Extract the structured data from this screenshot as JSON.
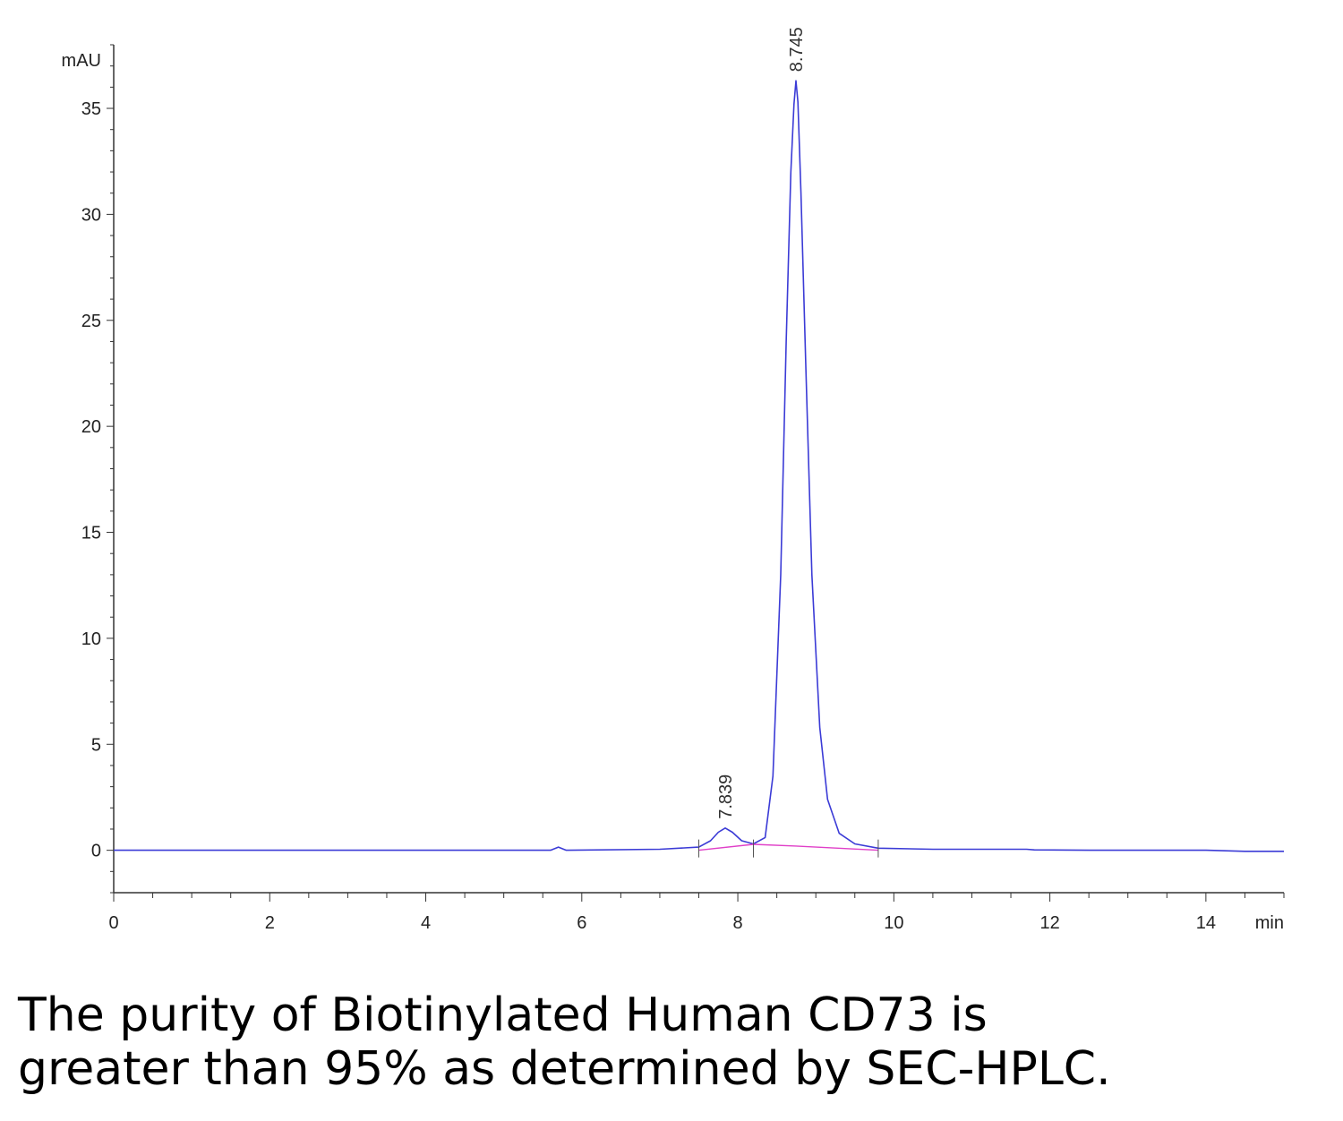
{
  "chart_data": {
    "type": "line",
    "title": "",
    "xlabel": "min",
    "ylabel": "mAU",
    "xlim": [
      0,
      15
    ],
    "ylim": [
      -2,
      38
    ],
    "x_ticks": [
      0,
      2,
      4,
      6,
      8,
      10,
      12,
      14
    ],
    "x_tick_labels": [
      "0",
      "2",
      "4",
      "6",
      "8",
      "10",
      "12",
      "14"
    ],
    "y_ticks": [
      0,
      5,
      10,
      15,
      20,
      25,
      30,
      35
    ],
    "y_tick_labels": [
      "0",
      "5",
      "10",
      "15",
      "20",
      "25",
      "30",
      "35"
    ],
    "grid": false,
    "series": [
      {
        "color": "#3b3bd6",
        "x": [
          0,
          5.6,
          5.7,
          5.8,
          7.0,
          7.5,
          7.65,
          7.75,
          7.839,
          7.93,
          8.05,
          8.2,
          8.35,
          8.45,
          8.55,
          8.62,
          8.68,
          8.72,
          8.745,
          8.77,
          8.81,
          8.87,
          8.95,
          9.05,
          9.15,
          9.3,
          9.5,
          9.8,
          10.5,
          11.7,
          11.8,
          12.5,
          14.0,
          14.5,
          15.0
        ],
        "y": [
          0.0,
          0.0,
          0.15,
          0.0,
          0.05,
          0.15,
          0.45,
          0.85,
          1.05,
          0.85,
          0.45,
          0.3,
          0.6,
          3.5,
          13.0,
          24.0,
          32.0,
          35.2,
          36.3,
          35.3,
          31.0,
          23.0,
          13.0,
          5.8,
          2.4,
          0.8,
          0.3,
          0.1,
          0.05,
          0.05,
          0.02,
          0.0,
          0.0,
          -0.05,
          -0.05
        ]
      },
      {
        "color": "#e040c8",
        "x": [
          7.5,
          8.2,
          8.745,
          9.8
        ],
        "y": [
          0.0,
          0.28,
          0.2,
          0.0
        ]
      }
    ],
    "peak_labels": [
      {
        "x": 7.839,
        "y": 1.05,
        "text": "7.839"
      },
      {
        "x": 8.745,
        "y": 36.3,
        "text": "8.745"
      }
    ],
    "integration_marks": [
      7.5,
      8.2,
      9.8
    ]
  },
  "caption": {
    "line1": "The purity of Biotinylated Human CD73 is",
    "line2": "greater than 95% as determined by SEC-HPLC."
  }
}
